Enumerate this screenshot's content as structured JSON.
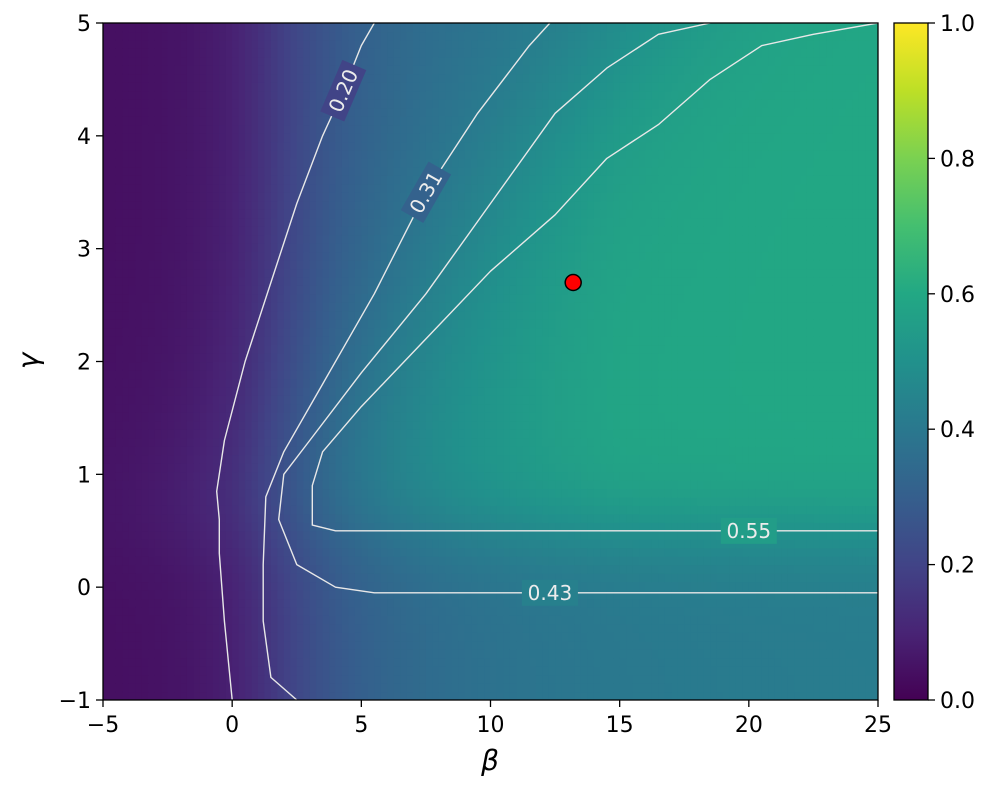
{
  "chart_data": {
    "type": "heatmap",
    "colormap": "viridis",
    "xlabel": "β",
    "ylabel": "γ",
    "xlim": [
      -5,
      25
    ],
    "ylim": [
      -1,
      5
    ],
    "x_ticks": [
      -5,
      0,
      5,
      10,
      15,
      20,
      25
    ],
    "y_ticks": [
      -1,
      0,
      1,
      2,
      3,
      4,
      5
    ],
    "x_tick_labels": [
      "−5",
      "0",
      "5",
      "10",
      "15",
      "20",
      "25"
    ],
    "y_tick_labels": [
      "−1",
      "0",
      "1",
      "2",
      "3",
      "4",
      "5"
    ],
    "colorbar": {
      "range": [
        0.0,
        1.0
      ],
      "ticks": [
        0.0,
        0.2,
        0.4,
        0.6,
        0.8,
        1.0
      ],
      "tick_labels": [
        "0.0",
        "0.2",
        "0.4",
        "0.6",
        "0.8",
        "1.0"
      ]
    },
    "peak_value": 0.62,
    "contours": [
      {
        "level": 0.2,
        "label": "0.20",
        "label_at": [
          4.3,
          4.4
        ],
        "points": [
          [
            0.0,
            -1.0
          ],
          [
            -0.3,
            -0.3
          ],
          [
            -0.5,
            0.3
          ],
          [
            -0.5,
            0.6
          ],
          [
            -0.6,
            0.85
          ],
          [
            -0.3,
            1.3
          ],
          [
            0.5,
            2.0
          ],
          [
            1.5,
            2.7
          ],
          [
            2.5,
            3.4
          ],
          [
            3.5,
            4.0
          ],
          [
            4.3,
            4.4
          ],
          [
            5.0,
            4.8
          ],
          [
            5.5,
            5.0
          ]
        ]
      },
      {
        "level": 0.31,
        "label": "0.31",
        "label_at": [
          7.5,
          3.5
        ],
        "points": [
          [
            2.5,
            -1.0
          ],
          [
            1.5,
            -0.8
          ],
          [
            1.2,
            -0.3
          ],
          [
            1.2,
            0.2
          ],
          [
            1.3,
            0.8
          ],
          [
            2.0,
            1.2
          ],
          [
            3.5,
            1.8
          ],
          [
            5.5,
            2.6
          ],
          [
            7.5,
            3.5
          ],
          [
            9.5,
            4.2
          ],
          [
            11.5,
            4.8
          ],
          [
            12.3,
            5.0
          ]
        ]
      },
      {
        "level": 0.43,
        "label": "0.43",
        "label_at": [
          12.3,
          -0.05
        ],
        "points": [
          [
            25.0,
            -0.05
          ],
          [
            19.0,
            -0.05
          ],
          [
            12.0,
            -0.05
          ],
          [
            5.5,
            -0.05
          ],
          [
            4.0,
            0.0
          ],
          [
            2.5,
            0.2
          ],
          [
            1.8,
            0.6
          ],
          [
            2.0,
            1.0
          ],
          [
            3.0,
            1.3
          ],
          [
            5.0,
            1.9
          ],
          [
            7.5,
            2.6
          ],
          [
            10.0,
            3.4
          ],
          [
            12.5,
            4.2
          ],
          [
            14.5,
            4.6
          ],
          [
            16.5,
            4.9
          ],
          [
            18.5,
            5.0
          ]
        ]
      },
      {
        "level": 0.55,
        "label": "0.55",
        "label_at": [
          20.0,
          0.5
        ],
        "points": [
          [
            25.0,
            0.5
          ],
          [
            20.0,
            0.5
          ],
          [
            12.0,
            0.5
          ],
          [
            4.0,
            0.5
          ],
          [
            3.1,
            0.55
          ],
          [
            3.1,
            0.9
          ],
          [
            3.5,
            1.2
          ],
          [
            5.0,
            1.6
          ],
          [
            7.5,
            2.2
          ],
          [
            10.0,
            2.8
          ],
          [
            12.5,
            3.3
          ],
          [
            14.5,
            3.8
          ],
          [
            16.5,
            4.1
          ],
          [
            18.5,
            4.5
          ],
          [
            20.5,
            4.8
          ],
          [
            22.5,
            4.9
          ],
          [
            25.0,
            5.0
          ]
        ]
      }
    ],
    "marker": {
      "x": 13.2,
      "y": 2.7,
      "fill": "#ff0000",
      "stroke": "#000000"
    }
  }
}
